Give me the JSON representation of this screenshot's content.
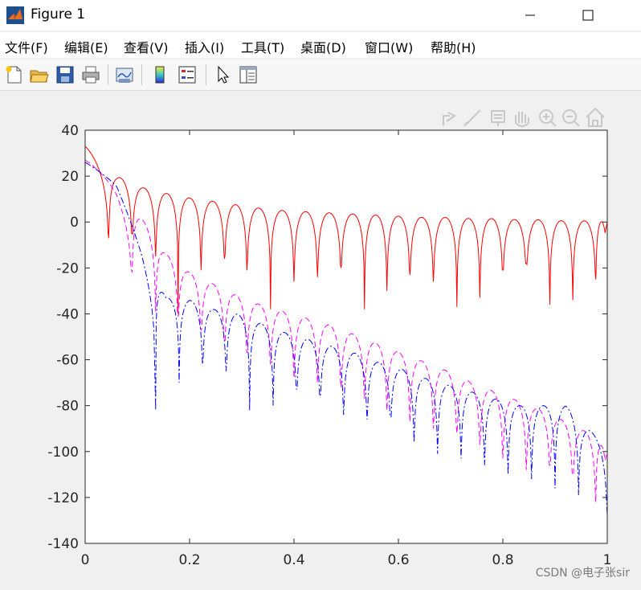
{
  "window": {
    "title": "Figure 1",
    "minimize_label": "—",
    "maximize_label": "☐",
    "app_icon": "matlab-logo-icon"
  },
  "menu": {
    "items": [
      "文件(F)",
      "编辑(E)",
      "查看(V)",
      "插入(I)",
      "工具(T)",
      "桌面(D)",
      "窗口(W)",
      "帮助(H)"
    ]
  },
  "toolbar": {
    "icons": [
      "new-figure-icon",
      "open-file-icon",
      "save-icon",
      "print-icon",
      "link-plot-icon",
      "colorbar-icon",
      "legend-icon",
      "pointer-icon",
      "property-inspector-icon"
    ]
  },
  "axes_toolbar": {
    "icons": [
      "export-icon",
      "brush-icon",
      "data-tip-icon",
      "pan-icon",
      "zoom-in-icon",
      "zoom-out-icon",
      "home-icon"
    ]
  },
  "watermark": "CSDN @电子张sir",
  "chart_data": {
    "type": "line",
    "title": "",
    "xlabel": "",
    "ylabel": "",
    "xlim": [
      0,
      1
    ],
    "ylim": [
      -140,
      40
    ],
    "xticks": [
      "0",
      "0.2",
      "0.4",
      "0.6",
      "0.8",
      "1"
    ],
    "yticks": [
      "40",
      "20",
      "0",
      "-20",
      "-40",
      "-60",
      "-80",
      "-100",
      "-120",
      "-140"
    ],
    "grid": false,
    "legend": "none",
    "series": [
      {
        "color": "#ff0000",
        "style": "solid",
        "description": "envelope peaks",
        "x": [
          0,
          0.06,
          0.11,
          0.155,
          0.2,
          0.245,
          0.29,
          0.335,
          0.38,
          0.425,
          0.47,
          0.515,
          0.56,
          0.605,
          0.65,
          0.695,
          0.74,
          0.785,
          0.83,
          0.875,
          0.92,
          0.965,
          1.0
        ],
        "y": [
          33,
          20,
          15,
          12.5,
          10.5,
          9,
          7.5,
          6,
          5,
          4.5,
          4,
          3.5,
          3,
          2.5,
          2,
          2,
          1.5,
          1.5,
          1,
          1,
          0.5,
          0.5,
          0
        ],
        "nulls_x": [
          0.045,
          0.09,
          0.135,
          0.178,
          0.222,
          0.267,
          0.31,
          0.355,
          0.4,
          0.445,
          0.49,
          0.535,
          0.578,
          0.622,
          0.667,
          0.712,
          0.756,
          0.8,
          0.845,
          0.89,
          0.934,
          0.978
        ],
        "nulls_y": [
          -7,
          -5,
          -15,
          -40,
          -21,
          -16,
          -21,
          -38,
          -26,
          -24,
          -20,
          -38,
          -30,
          -23,
          -26,
          -37,
          -33,
          -21,
          -18,
          -36,
          -34,
          -25
        ]
      },
      {
        "color": "#ff00ff",
        "style": "dashed",
        "description": "envelope peaks",
        "x": [
          0,
          0.06,
          0.11,
          0.155,
          0.2,
          0.245,
          0.29,
          0.335,
          0.38,
          0.425,
          0.47,
          0.515,
          0.56,
          0.605,
          0.65,
          0.695,
          0.74,
          0.785,
          0.83,
          0.875,
          0.92,
          0.965,
          1.0
        ],
        "y": [
          27,
          18,
          1,
          -14,
          -22,
          -27,
          -32,
          -36,
          -39,
          -42,
          -45,
          -49,
          -53,
          -57,
          -61,
          -65,
          -70,
          -74,
          -78,
          -82,
          -87,
          -92,
          -100
        ],
        "nulls_x": [
          0.09,
          0.135,
          0.178,
          0.222,
          0.267,
          0.31,
          0.355,
          0.4,
          0.445,
          0.49,
          0.535,
          0.578,
          0.622,
          0.667,
          0.712,
          0.756,
          0.8,
          0.845,
          0.89,
          0.934,
          0.978
        ],
        "nulls_y": [
          -22,
          -39,
          -41,
          -47,
          -52,
          -57,
          -62,
          -68,
          -70,
          -72,
          -77,
          -82,
          -87,
          -90,
          -92,
          -97,
          -103,
          -108,
          -106,
          -110,
          -122
        ]
      },
      {
        "color": "#0000ff",
        "style": "dashdot",
        "description": "envelope peaks",
        "x": [
          0,
          0.06,
          0.11,
          0.155,
          0.2,
          0.245,
          0.29,
          0.335,
          0.38,
          0.425,
          0.47,
          0.515,
          0.56,
          0.605,
          0.65,
          0.695,
          0.74,
          0.785,
          0.83,
          0.875,
          0.92,
          0.965,
          1.0
        ],
        "y": [
          26,
          18,
          -5,
          -33,
          -34,
          -38,
          -40,
          -44,
          -48,
          -51,
          -54,
          -57,
          -61,
          -64,
          -68,
          -71,
          -74,
          -77,
          -80,
          -80,
          -80,
          -90,
          -100
        ],
        "nulls_x": [
          0.135,
          0.18,
          0.225,
          0.27,
          0.315,
          0.36,
          0.405,
          0.45,
          0.495,
          0.54,
          0.585,
          0.63,
          0.675,
          0.72,
          0.765,
          0.81,
          0.855,
          0.9,
          0.945,
          1.0
        ],
        "nulls_y": [
          -82,
          -70,
          -62,
          -65,
          -82,
          -80,
          -73,
          -76,
          -84,
          -86,
          -85,
          -96,
          -101,
          -103,
          -106,
          -110,
          -112,
          -116,
          -119,
          -128
        ]
      }
    ]
  }
}
